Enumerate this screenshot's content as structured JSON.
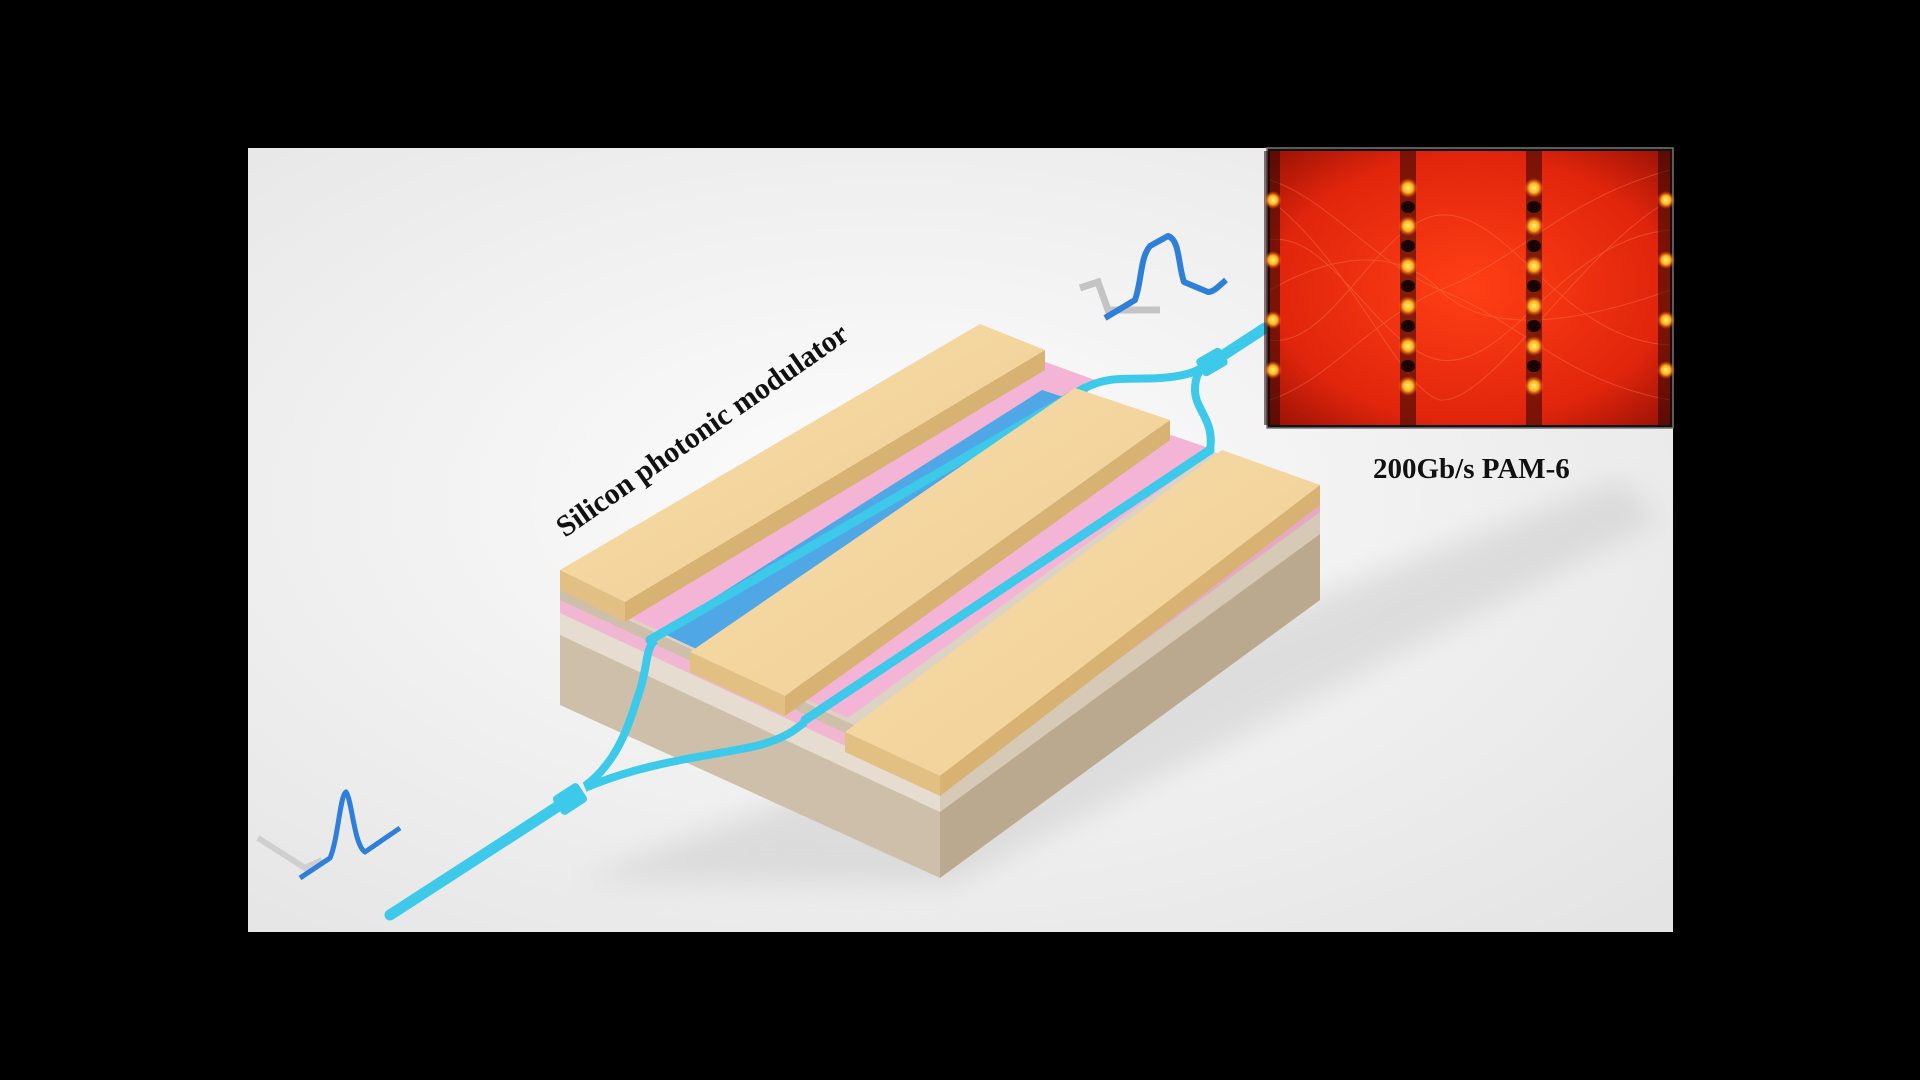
{
  "diagram": {
    "device_label": "Silicon photonic modulator",
    "eye_caption": "200Gb/s PAM-6",
    "colors": {
      "background": "#000000",
      "panel": "#f6f6f6",
      "electrode": "#f3d49c",
      "electrode_side": "#e2bf82",
      "cladding_pink": "#f4b4d6",
      "channel_blue": "#4fa7e6",
      "waveguide": "#3cc9ea",
      "substrate_top": "#dcd3c4",
      "substrate_side": "#cdbfa9",
      "eye_dark": "#cf1d0a",
      "eye_glow": "#ffd43c",
      "signal_blue": "#2e7fd9"
    }
  }
}
